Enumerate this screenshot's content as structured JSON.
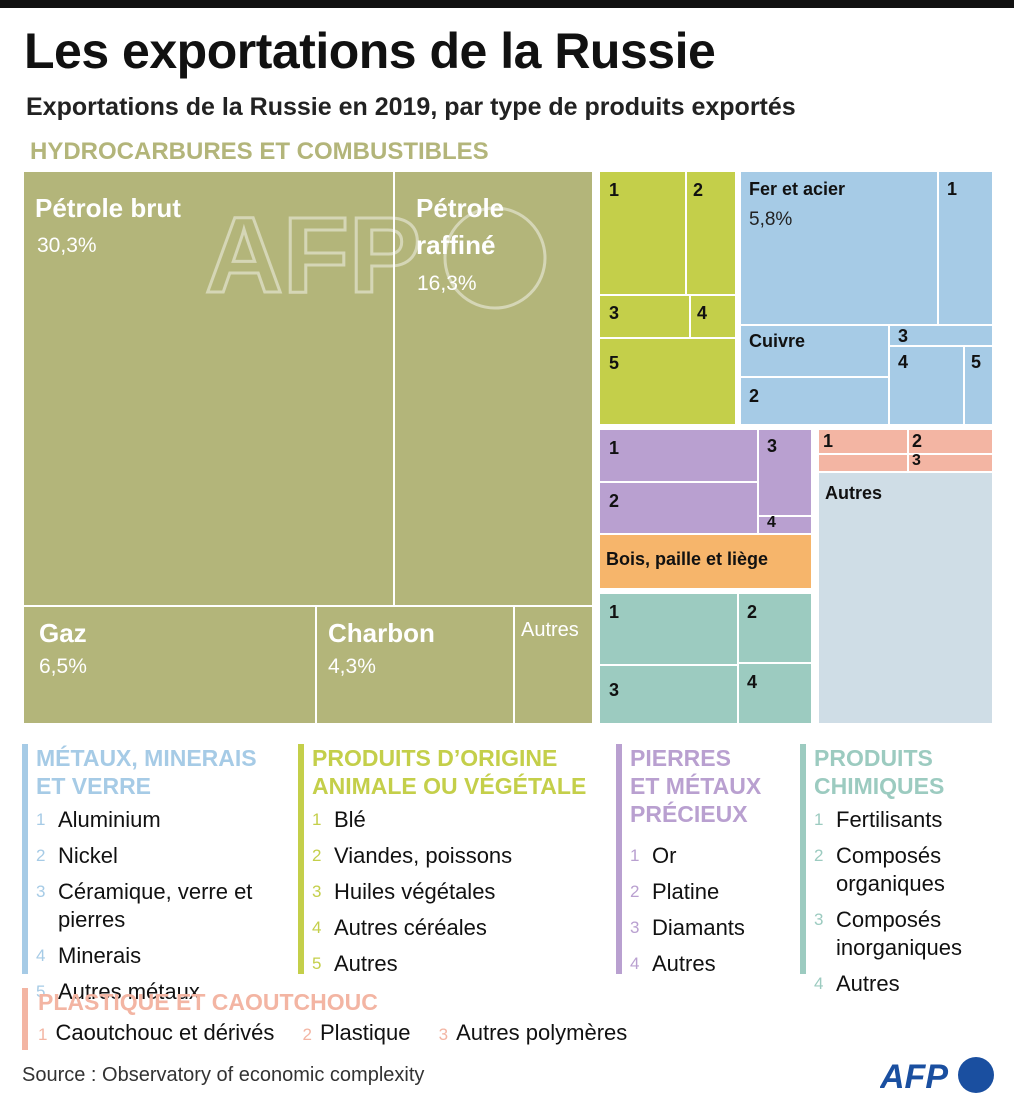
{
  "title": "Les exportations de la Russie",
  "subtitle": "Exportations de la Russie en 2019, par type de produits exportés",
  "source": "Source : Observatory of economic complexity",
  "logo": "AFP",
  "colors": {
    "hydrocarbures": "#b3b57a",
    "metaux": "#a6cbe6",
    "origine": "#c4cf4a",
    "pierres": "#b9a0d0",
    "chimiques": "#9ccbc0",
    "plastique": "#f3b5a3",
    "bois": "#f6b56b",
    "autres": "#cfdde6"
  },
  "chart_data": {
    "type": "treemap",
    "title": "Exportations de la Russie en 2019, par type de produits exportés",
    "groups": [
      {
        "name": "HYDROCARBURES ET COMBUSTIBLES",
        "items": [
          {
            "label": "Pétrole brut",
            "value": 30.3,
            "value_label": "30,3%"
          },
          {
            "label": "Pétrole raffiné",
            "value": 16.3,
            "value_label": "16,3%"
          },
          {
            "label": "Gaz",
            "value": 6.5,
            "value_label": "6,5%"
          },
          {
            "label": "Charbon",
            "value": 4.3,
            "value_label": "4,3%"
          },
          {
            "label": "Autres",
            "value": null,
            "value_label": ""
          }
        ]
      },
      {
        "name": "MÉTAUX, MINERAIS ET VERRE",
        "items": [
          {
            "label": "Fer et acier",
            "value": 5.8,
            "value_label": "5,8%"
          },
          {
            "label": "Cuivre",
            "value": null,
            "value_label": ""
          },
          {
            "label": "1",
            "value": null
          },
          {
            "label": "2",
            "value": null
          },
          {
            "label": "3",
            "value": null
          },
          {
            "label": "4",
            "value": null
          },
          {
            "label": "5",
            "value": null
          }
        ]
      },
      {
        "name": "PRODUITS D’ORIGINE ANIMALE OU VÉGÉTALE",
        "items": [
          "1",
          "2",
          "3",
          "4",
          "5"
        ]
      },
      {
        "name": "PIERRES ET MÉTAUX PRÉCIEUX",
        "items": [
          "1",
          "2",
          "3",
          "4"
        ]
      },
      {
        "name": "PLASTIQUE ET CAOUTCHOUC",
        "items": [
          "1",
          "2",
          "3"
        ]
      },
      {
        "name": "Bois, paille et liège",
        "items": []
      },
      {
        "name": "PRODUITS CHIMIQUES",
        "items": [
          "1",
          "2",
          "3",
          "4"
        ]
      },
      {
        "name": "Autres",
        "items": []
      }
    ]
  },
  "treemap": {
    "hc_header": "HYDROCARBURES ET COMBUSTIBLES",
    "petrole_brut": {
      "label": "Pétrole brut",
      "pct": "30,3%"
    },
    "petrole_raffine": {
      "label1": "Pétrole",
      "label2": "raffiné",
      "pct": "16,3%"
    },
    "gaz": {
      "label": "Gaz",
      "pct": "6,5%"
    },
    "charbon": {
      "label": "Charbon",
      "pct": "4,3%"
    },
    "hc_autres": "Autres",
    "fer": {
      "label": "Fer et acier",
      "pct": "5,8%"
    },
    "cuivre": "Cuivre",
    "bois": "Bois, paille et liège",
    "autres": "Autres",
    "n1": "1",
    "n2": "2",
    "n3": "3",
    "n4": "4",
    "n5": "5"
  },
  "legends": {
    "metaux": {
      "head1": "MÉTAUX, MINERAIS",
      "head2": "ET VERRE",
      "items": [
        {
          "n": "1",
          "label": "Aluminium"
        },
        {
          "n": "2",
          "label": "Nickel"
        },
        {
          "n": "3",
          "label": "Céramique, verre et pierres"
        },
        {
          "n": "4",
          "label": "Minerais"
        },
        {
          "n": "5",
          "label": "Autres métaux"
        }
      ]
    },
    "origine": {
      "head1": "PRODUITS D’ORIGINE",
      "head2": "ANIMALE OU VÉGÉTALE",
      "items": [
        {
          "n": "1",
          "label": "Blé"
        },
        {
          "n": "2",
          "label": "Viandes, poissons"
        },
        {
          "n": "3",
          "label": "Huiles végétales"
        },
        {
          "n": "4",
          "label": "Autres céréales"
        },
        {
          "n": "5",
          "label": "Autres"
        }
      ]
    },
    "pierres": {
      "head1": "PIERRES",
      "head2": "ET MÉTAUX",
      "head3": "PRÉCIEUX",
      "items": [
        {
          "n": "1",
          "label": "Or"
        },
        {
          "n": "2",
          "label": "Platine"
        },
        {
          "n": "3",
          "label": "Diamants"
        },
        {
          "n": "4",
          "label": "Autres"
        }
      ]
    },
    "chimiques": {
      "head1": "PRODUITS",
      "head2": "CHIMIQUES",
      "items": [
        {
          "n": "1",
          "label": "Fertilisants"
        },
        {
          "n": "2",
          "label": "Composés organiques"
        },
        {
          "n": "3",
          "label": "Composés inorganiques"
        },
        {
          "n": "4",
          "label": "Autres"
        }
      ]
    },
    "plastique": {
      "head": "PLASTIQUE ET CAOUTCHOUC",
      "items": [
        {
          "n": "1",
          "label": "Caoutchouc et dérivés"
        },
        {
          "n": "2",
          "label": "Plastique"
        },
        {
          "n": "3",
          "label": "Autres polymères"
        }
      ]
    }
  }
}
